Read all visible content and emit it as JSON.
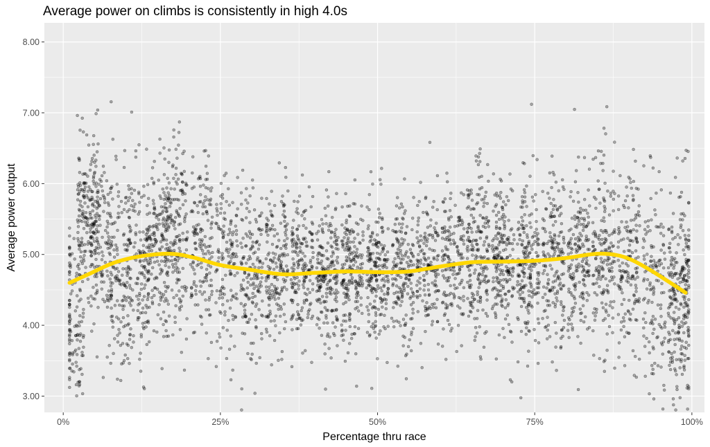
{
  "chart_data": {
    "type": "scatter",
    "title": "Average power on climbs is consistently in high 4.0s",
    "xlabel": "Percentage thru race",
    "ylabel": "Average power output",
    "x_range": [
      -0.03,
      1.02
    ],
    "y_range": [
      2.77,
      8.27
    ],
    "x_ticks": [
      0,
      0.25,
      0.5,
      0.75,
      1.0
    ],
    "x_tick_labels": [
      "0%",
      "25%",
      "50%",
      "75%",
      "100%"
    ],
    "y_ticks": [
      3,
      4,
      5,
      6,
      7,
      8
    ],
    "y_tick_labels": [
      "3.00",
      "4.00",
      "5.00",
      "6.00",
      "7.00",
      "8.00"
    ],
    "grid": true,
    "point_color": "#000000",
    "point_opacity": 0.3,
    "smooth_color": "#FFD700",
    "background": "#EBEBEB",
    "gridline_color": "#FFFFFF",
    "scatter_clusters": [
      {
        "x": 0.015,
        "mean": 4.1,
        "sd": 0.6,
        "n": 120
      },
      {
        "x": 0.04,
        "mean": 5.6,
        "sd": 0.5,
        "n": 180
      },
      {
        "x": 0.06,
        "mean": 5.0,
        "sd": 0.6,
        "n": 120
      },
      {
        "x": 0.09,
        "mean": 4.7,
        "sd": 0.8,
        "n": 150
      },
      {
        "x": 0.12,
        "mean": 4.8,
        "sd": 0.7,
        "n": 150
      },
      {
        "x": 0.15,
        "mean": 5.1,
        "sd": 0.6,
        "n": 180
      },
      {
        "x": 0.18,
        "mean": 5.2,
        "sd": 0.7,
        "n": 180
      },
      {
        "x": 0.22,
        "mean": 5.1,
        "sd": 0.6,
        "n": 160
      },
      {
        "x": 0.26,
        "mean": 4.8,
        "sd": 0.6,
        "n": 140
      },
      {
        "x": 0.3,
        "mean": 4.8,
        "sd": 0.6,
        "n": 160
      },
      {
        "x": 0.34,
        "mean": 4.8,
        "sd": 0.55,
        "n": 180
      },
      {
        "x": 0.38,
        "mean": 4.75,
        "sd": 0.55,
        "n": 180
      },
      {
        "x": 0.42,
        "mean": 4.6,
        "sd": 0.5,
        "n": 200
      },
      {
        "x": 0.46,
        "mean": 4.8,
        "sd": 0.5,
        "n": 200
      },
      {
        "x": 0.5,
        "mean": 4.8,
        "sd": 0.5,
        "n": 200
      },
      {
        "x": 0.54,
        "mean": 4.75,
        "sd": 0.5,
        "n": 180
      },
      {
        "x": 0.58,
        "mean": 4.8,
        "sd": 0.5,
        "n": 160
      },
      {
        "x": 0.62,
        "mean": 4.9,
        "sd": 0.55,
        "n": 160
      },
      {
        "x": 0.66,
        "mean": 5.0,
        "sd": 0.6,
        "n": 200
      },
      {
        "x": 0.7,
        "mean": 4.9,
        "sd": 0.55,
        "n": 200
      },
      {
        "x": 0.74,
        "mean": 4.85,
        "sd": 0.6,
        "n": 200
      },
      {
        "x": 0.78,
        "mean": 4.9,
        "sd": 0.6,
        "n": 180
      },
      {
        "x": 0.82,
        "mean": 4.9,
        "sd": 0.65,
        "n": 180
      },
      {
        "x": 0.86,
        "mean": 5.0,
        "sd": 0.7,
        "n": 180
      },
      {
        "x": 0.9,
        "mean": 4.8,
        "sd": 0.65,
        "n": 160
      },
      {
        "x": 0.94,
        "mean": 4.6,
        "sd": 0.7,
        "n": 140
      },
      {
        "x": 0.98,
        "mean": 4.4,
        "sd": 0.75,
        "n": 260
      }
    ],
    "smooth_line": {
      "x": [
        0.01,
        0.04,
        0.08,
        0.12,
        0.17,
        0.21,
        0.25,
        0.3,
        0.35,
        0.4,
        0.45,
        0.5,
        0.55,
        0.6,
        0.65,
        0.7,
        0.75,
        0.8,
        0.85,
        0.89,
        0.93,
        0.99
      ],
      "y": [
        4.6,
        4.72,
        4.88,
        4.97,
        5.01,
        4.95,
        4.85,
        4.78,
        4.72,
        4.74,
        4.76,
        4.75,
        4.76,
        4.83,
        4.89,
        4.9,
        4.91,
        4.95,
        5.01,
        4.97,
        4.8,
        4.46
      ]
    }
  }
}
